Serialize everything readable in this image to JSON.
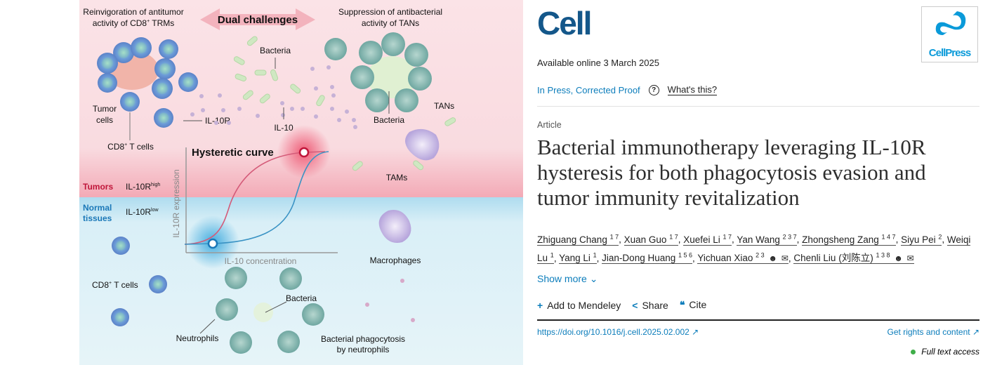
{
  "abstract": {
    "top_left": {
      "line1": "Reinvigoration of antitumor",
      "line2a": "activity of CD8",
      "sup": "+",
      "line2b": " TRMs"
    },
    "center_banner": "Dual challenges",
    "top_right": {
      "line1": "Suppression of antibacterial",
      "line2": "activity of TANs"
    },
    "labels": {
      "bacteria_top": "Bacteria",
      "tumor_cells_1": "Tumor",
      "tumor_cells_2": "cells",
      "il10r": "IL-10R",
      "il10": "IL-10",
      "cd8_top": "CD8",
      "cd8_top_sup": "+",
      "cd8_top_rest": " T cells",
      "bacteria_right": "Bacteria",
      "tans": "TANs",
      "tams": "TAMs",
      "hysteretic_curve": "Hysteretic curve",
      "y_axis": "IL-10R expression",
      "x_axis": "IL-10 concentration",
      "tumors": "Tumors",
      "il10r_high": "IL-10R",
      "high_sup": "high",
      "normal_1": "Normal",
      "normal_2": "tissues",
      "il10r_low": "IL-10R",
      "low_sup": "low",
      "macrophages": "Macrophages",
      "cd8_bottom": "CD8",
      "cd8_bottom_sup": "+",
      "cd8_bottom_rest": " T cells",
      "bacteria_bottom": "Bacteria",
      "neutrophils": "Neutrophils",
      "phago_1": "Bacterial phagocytosis",
      "phago_2": "by neutrophils"
    },
    "colors": {
      "tumor_bg": "#f9dde2",
      "normal_bg": "#def1f7",
      "tumor_red": "#c0163a",
      "normal_blue": "#1a78b8"
    }
  },
  "journal": {
    "name": "Cell",
    "publisher_logo": "CellPress"
  },
  "available_online": "Available online 3 March 2025",
  "status": {
    "label": "In Press, Corrected Proof",
    "help_icon": "question-circle-icon",
    "whats_this": "What's this?"
  },
  "article_type": "Article",
  "title": "Bacterial immunotherapy leveraging IL-10R hysteresis for both phagocytosis evasion and tumor immunity revitalization",
  "authors": [
    {
      "name": "Zhiguang Chang",
      "aff": "1 7"
    },
    {
      "name": "Xuan Guo",
      "aff": "1 7"
    },
    {
      "name": "Xuefei Li",
      "aff": "1 7"
    },
    {
      "name": "Yan Wang",
      "aff": "2 3 7"
    },
    {
      "name": "Zhongsheng Zang",
      "aff": "1 4 7"
    },
    {
      "name": "Siyu Pei",
      "aff": "2"
    },
    {
      "name": "Weiqi Lu",
      "aff": "1"
    },
    {
      "name": "Yang Li",
      "aff": "1"
    },
    {
      "name": "Jian-Dong Huang",
      "aff": "1 5 6"
    },
    {
      "name": "Yichuan Xiao",
      "aff": "2 3"
    },
    {
      "name": "Chenli Liu (刘陈立)",
      "aff": "1 3 8"
    }
  ],
  "show_more": "Show more",
  "actions": {
    "mendeley": "Add to Mendeley",
    "share": "Share",
    "cite": "Cite"
  },
  "doi": "https://doi.org/10.1016/j.cell.2025.02.002",
  "rights": "Get rights and content",
  "access": "Full text access"
}
